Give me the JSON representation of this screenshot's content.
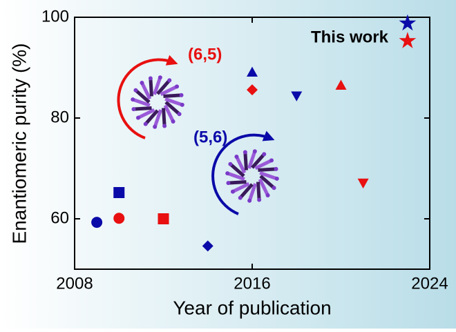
{
  "chart_data": {
    "type": "scatter",
    "xlabel": "Year of publication",
    "ylabel": "Enantiomeric purity (%)",
    "xlim": [
      2008,
      2024
    ],
    "xticks": [
      2008,
      2016,
      2024
    ],
    "ylim": [
      50,
      100
    ],
    "yticks": [
      60,
      80,
      100
    ],
    "annotation": "This work",
    "series": [
      {
        "name": "(5,6)",
        "color": "#0a0aa8",
        "x": [
          2009,
          2010,
          2014,
          2016,
          2018,
          2023
        ],
        "values": [
          59.3,
          65.2,
          54.6,
          89.1,
          84.4,
          98.8
        ],
        "markers": [
          "circle",
          "square",
          "diamond",
          "triangle-up",
          "triangle-down",
          "star"
        ]
      },
      {
        "name": "(6,5)",
        "color": "#e81010",
        "x": [
          2010,
          2012,
          2016,
          2020,
          2021,
          2023
        ],
        "values": [
          60.1,
          60,
          85.6,
          86.5,
          67.1,
          95.3
        ],
        "markers": [
          "circle",
          "square",
          "diamond",
          "triangle-up",
          "triangle-down",
          "star"
        ]
      }
    ]
  }
}
